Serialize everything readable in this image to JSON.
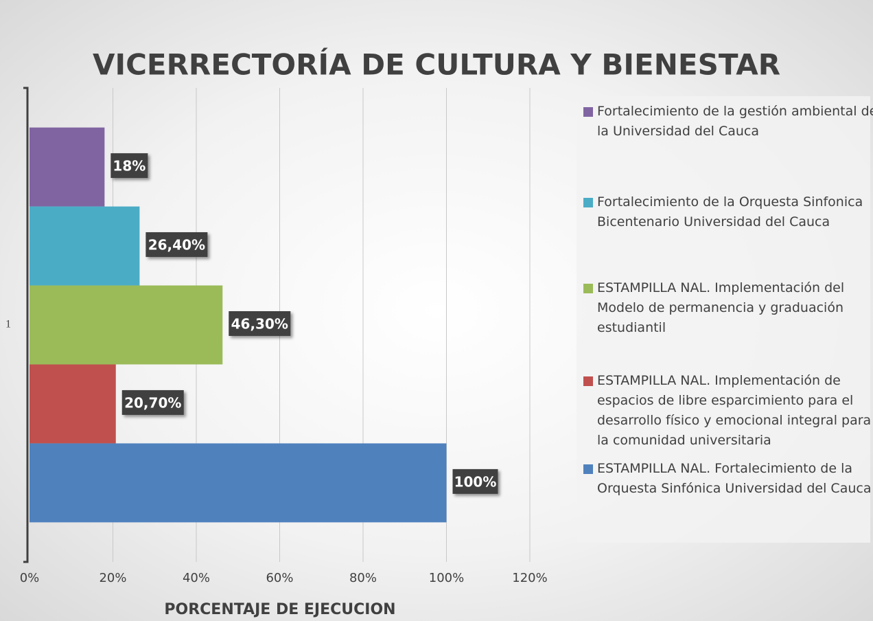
{
  "chart_data": {
    "type": "bar",
    "orientation": "horizontal",
    "title": "VICERRECTORÍA DE CULTURA Y BIENESTAR",
    "x_label": "PORCENTAJE DE EJECUCION",
    "categories": [
      "1"
    ],
    "series": [
      {
        "name": "Fortalecimiento de la gestión ambiental de la Universidad del Cauca",
        "color": "#8064a2",
        "values": [
          18
        ],
        "value_labels": [
          "18%"
        ]
      },
      {
        "name": "Fortalecimiento de la Orquesta Sinfonica Bicentenario Universidad del Cauca",
        "color": "#4bacc6",
        "values": [
          26.4
        ],
        "value_labels": [
          "26,40%"
        ]
      },
      {
        "name": "ESTAMPILLA NAL. Implementación del Modelo de  permanencia y graduación estudiantil",
        "color": "#9bbb59",
        "values": [
          46.3
        ],
        "value_labels": [
          "46,30%"
        ]
      },
      {
        "name": "ESTAMPILLA NAL. Implementación de espacios de libre esparcimiento para el desarrollo físico y emocional integral para la comunidad universitaria",
        "color": "#c0504d",
        "values": [
          20.7
        ],
        "value_labels": [
          "20,70%"
        ]
      },
      {
        "name": "ESTAMPILLA NAL. Fortalecimiento de la Orquesta Sinfónica Universidad del Cauca",
        "color": "#4f81bd",
        "values": [
          100
        ],
        "value_labels": [
          "100%"
        ]
      }
    ],
    "xlim": [
      0,
      120
    ],
    "xticks": [
      {
        "value": 0,
        "label": "0%"
      },
      {
        "value": 20,
        "label": "20%"
      },
      {
        "value": 40,
        "label": "40%"
      },
      {
        "value": 60,
        "label": "60%"
      },
      {
        "value": 80,
        "label": "80%"
      },
      {
        "value": 100,
        "label": "100%"
      },
      {
        "value": 120,
        "label": "120%"
      }
    ],
    "grid": true,
    "legend": "right"
  }
}
